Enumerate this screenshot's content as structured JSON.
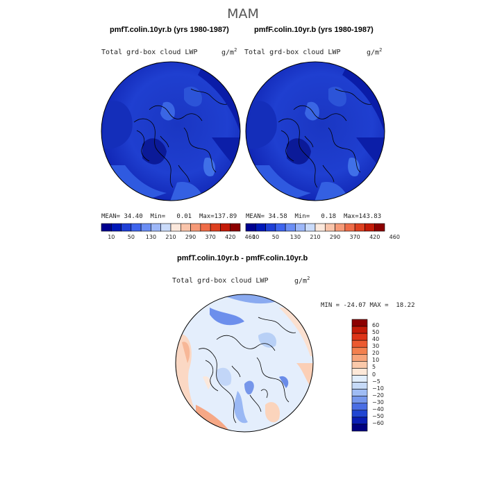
{
  "season": "MAM",
  "panels": [
    {
      "title": "pmfT.colin.10yr.b (yrs 1980-1987)",
      "variable": "Total grd-box cloud LWP",
      "units": "g/m",
      "units_exp": "2",
      "mean_label": "MEAN=",
      "mean": "34.40",
      "min_label": "Min=",
      "min": "0.01",
      "max_label": "Max=",
      "max": "137.89"
    },
    {
      "title": "pmfF.colin.10yr.b (yrs 1980-1987)",
      "variable": "Total grd-box cloud LWP",
      "units": "g/m",
      "units_exp": "2",
      "mean_label": "MEAN=",
      "mean": "34.58",
      "min_label": "Min=",
      "min": "0.18",
      "max_label": "Max=",
      "max": "143.83"
    }
  ],
  "colorbar_abs": {
    "ticks": [
      "10",
      "50",
      "130",
      "210",
      "290",
      "370",
      "420",
      "460"
    ],
    "colors": [
      "#000090",
      "#0018b8",
      "#1f3fd6",
      "#3e64ee",
      "#6b8ef5",
      "#9db7f8",
      "#cadbfa",
      "#fbe8dc",
      "#f9c4aa",
      "#f69a78",
      "#ef6c48",
      "#de4020",
      "#c41b08",
      "#8c0000"
    ]
  },
  "diff_panel": {
    "title": "pmfT.colin.10yr.b - pmfF.colin.10yr.b",
    "variable": "Total grd-box cloud LWP",
    "units": "g/m",
    "units_exp": "2",
    "min_label": "MIN =",
    "min": "-24.07",
    "max_label": "MAX =",
    "max": "18.22"
  },
  "colorbar_diff": {
    "labels": [
      "60",
      "50",
      "40",
      "30",
      "20",
      "10",
      "5",
      "0",
      "−5",
      "−10",
      "−20",
      "−30",
      "−40",
      "−50",
      "−60"
    ],
    "colors": [
      "#8c0000",
      "#c41b08",
      "#de3418",
      "#ec5a30",
      "#f3804e",
      "#f7a47a",
      "#fac9aa",
      "#fde8d8",
      "#e2eefc",
      "#c6daf8",
      "#9fbcf4",
      "#7697ec",
      "#4a6ee4",
      "#2146d2",
      "#0a1eb4",
      "#000080"
    ]
  },
  "map_colors": {
    "deep": "#0a1cb0",
    "mid": "#1b3ccc",
    "light": "#2e58de",
    "pale": "#4a78ec",
    "ocean_dark": "#061290"
  }
}
